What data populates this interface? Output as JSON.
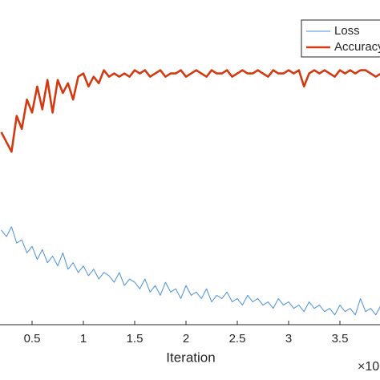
{
  "chart_data": {
    "type": "line",
    "x": [
      0.2,
      0.25,
      0.3,
      0.35,
      0.4,
      0.45,
      0.5,
      0.55,
      0.6,
      0.65,
      0.7,
      0.75,
      0.8,
      0.85,
      0.9,
      0.95,
      1.0,
      1.05,
      1.1,
      1.15,
      1.2,
      1.25,
      1.3,
      1.35,
      1.4,
      1.45,
      1.5,
      1.55,
      1.6,
      1.65,
      1.7,
      1.75,
      1.8,
      1.85,
      1.9,
      1.95,
      2.0,
      2.05,
      2.1,
      2.15,
      2.2,
      2.25,
      2.3,
      2.35,
      2.4,
      2.45,
      2.5,
      2.55,
      2.6,
      2.65,
      2.7,
      2.75,
      2.8,
      2.85,
      2.9,
      2.95,
      3.0,
      3.05,
      3.1,
      3.15,
      3.2,
      3.25,
      3.3,
      3.35,
      3.4,
      3.45,
      3.5,
      3.55,
      3.6,
      3.65,
      3.7,
      3.75,
      3.8,
      3.85,
      3.9
    ],
    "series": [
      {
        "name": "Loss",
        "color": "#4a90d9",
        "values": [
          0.29,
          0.27,
          0.3,
          0.25,
          0.26,
          0.22,
          0.24,
          0.2,
          0.23,
          0.19,
          0.21,
          0.18,
          0.22,
          0.17,
          0.19,
          0.16,
          0.18,
          0.15,
          0.17,
          0.14,
          0.16,
          0.15,
          0.13,
          0.16,
          0.12,
          0.14,
          0.13,
          0.11,
          0.14,
          0.1,
          0.12,
          0.09,
          0.13,
          0.1,
          0.11,
          0.08,
          0.12,
          0.09,
          0.1,
          0.08,
          0.11,
          0.07,
          0.09,
          0.08,
          0.1,
          0.07,
          0.08,
          0.06,
          0.09,
          0.07,
          0.08,
          0.06,
          0.07,
          0.05,
          0.08,
          0.06,
          0.07,
          0.05,
          0.06,
          0.04,
          0.07,
          0.05,
          0.06,
          0.04,
          0.05,
          0.03,
          0.06,
          0.04,
          0.05,
          0.03,
          0.08,
          0.04,
          0.05,
          0.03,
          0.06
        ]
      },
      {
        "name": "Accuracy",
        "color": "#d23a12",
        "values": [
          0.59,
          0.56,
          0.53,
          0.64,
          0.6,
          0.69,
          0.65,
          0.73,
          0.66,
          0.75,
          0.65,
          0.75,
          0.71,
          0.74,
          0.69,
          0.76,
          0.77,
          0.73,
          0.76,
          0.74,
          0.78,
          0.76,
          0.77,
          0.76,
          0.77,
          0.76,
          0.78,
          0.77,
          0.78,
          0.76,
          0.77,
          0.78,
          0.76,
          0.77,
          0.77,
          0.78,
          0.76,
          0.77,
          0.78,
          0.77,
          0.76,
          0.78,
          0.77,
          0.77,
          0.78,
          0.76,
          0.77,
          0.78,
          0.77,
          0.77,
          0.78,
          0.77,
          0.76,
          0.78,
          0.77,
          0.77,
          0.78,
          0.77,
          0.78,
          0.73,
          0.77,
          0.78,
          0.77,
          0.78,
          0.77,
          0.76,
          0.78,
          0.77,
          0.78,
          0.77,
          0.78,
          0.78,
          0.77,
          0.76,
          0.77
        ]
      }
    ],
    "xlim": [
      0,
      4
    ],
    "xticks": [
      0.5,
      1,
      1.5,
      2,
      2.5,
      3,
      3.5
    ],
    "ylim": [
      0,
      1
    ],
    "xlabel": "Iteration",
    "x_exponent": "×10"
  }
}
